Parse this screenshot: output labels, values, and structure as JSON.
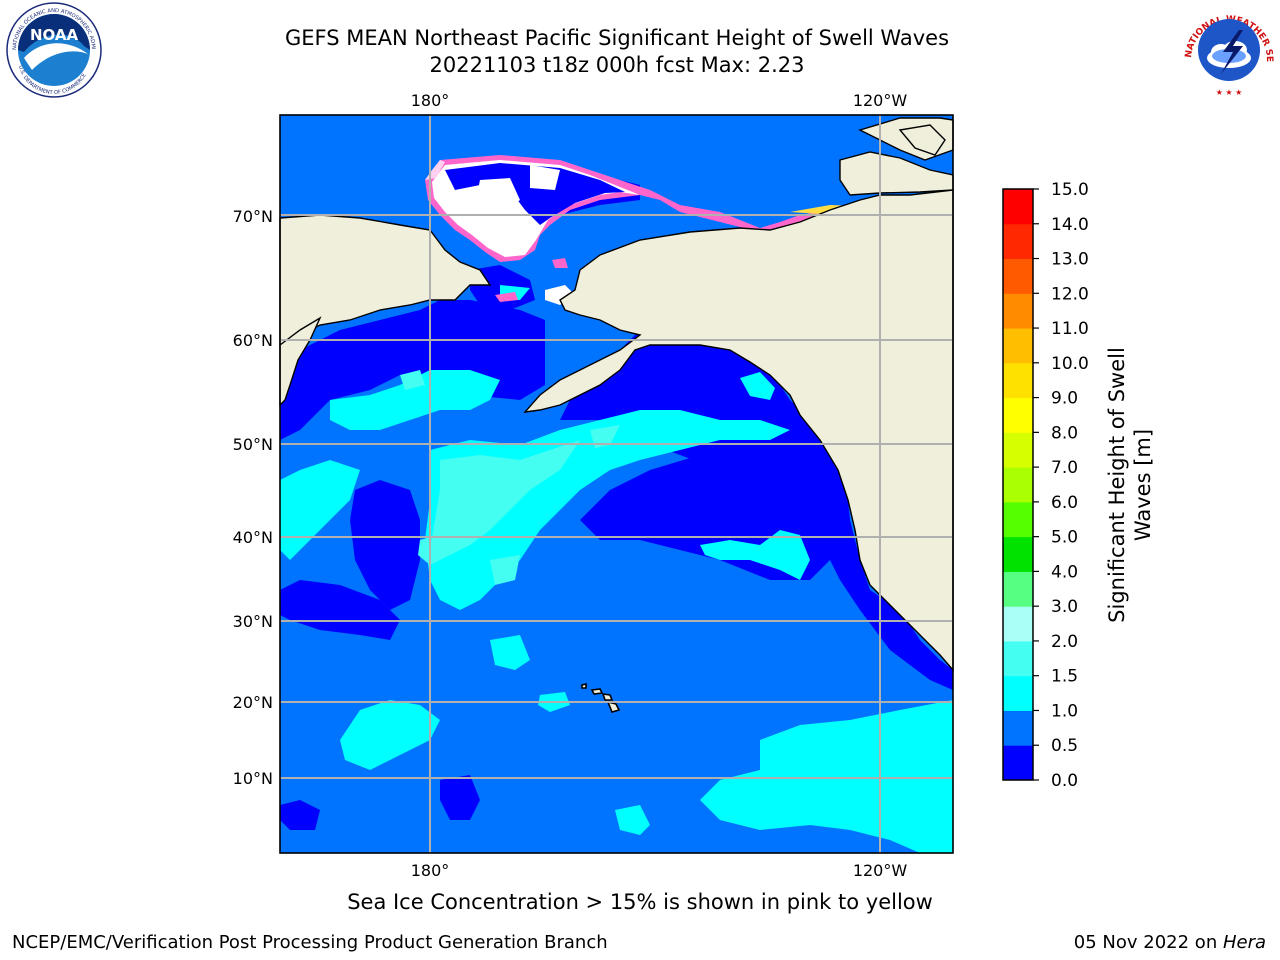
{
  "title_line1": "GEFS MEAN Northeast Pacific Significant Height of Swell Waves",
  "title_line2": "20221103 t18z 000h fcst   Max: 2.23",
  "logos": {
    "noaa_text": "NOAA",
    "noaa_ring": "NATIONAL OCEANIC AND ATMOSPHERIC ADMINISTRATION · U.S. DEPARTMENT OF COMMERCE",
    "nws_ring": "NATIONAL WEATHER SERVICE"
  },
  "map": {
    "lon_labels_top": [
      "180°",
      "120°W"
    ],
    "lon_labels_bottom": [
      "180°",
      "120°W"
    ],
    "lat_labels": [
      "70°N",
      "60°N",
      "50°N",
      "40°N",
      "30°N",
      "20°N",
      "10°N"
    ]
  },
  "colorbar": {
    "label": "Significant Height of Swell Waves [m]",
    "ticks": [
      "15.0",
      "14.0",
      "13.0",
      "12.0",
      "11.0",
      "10.0",
      "9.0",
      "8.0",
      "7.0",
      "6.0",
      "5.0",
      "4.0",
      "3.0",
      "2.0",
      "1.5",
      "1.0",
      "0.5",
      "0.0"
    ],
    "colors_bottom_to_top": [
      "#0000ff",
      "#0073ff",
      "#00ffff",
      "#44fff1",
      "#aafff6",
      "#56ff81",
      "#00e300",
      "#55ff00",
      "#aaff00",
      "#d6ff00",
      "#ffff00",
      "#ffe100",
      "#ffbe00",
      "#ff8c00",
      "#ff5a00",
      "#ff2800",
      "#ff0000"
    ]
  },
  "ice_note": "Sea Ice Concentration > 15% is shown in pink to yellow",
  "footer_left": "NCEP/EMC/Verification Post Processing Product Generation Branch",
  "footer_right_date": "05 Nov 2022 on ",
  "footer_right_machine": "Hera"
}
